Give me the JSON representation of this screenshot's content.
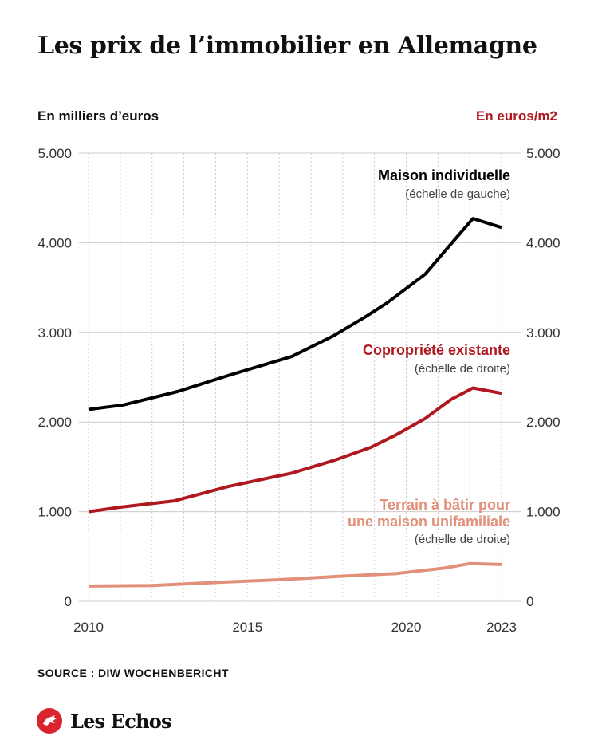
{
  "title": "Les prix de l’immobilier en Allemagne",
  "unit_left": "En milliers d’euros",
  "unit_right": "En euros/m2",
  "source": "SOURCE : DIW WOCHENBERICHT",
  "logo": "Les Echos",
  "colors": {
    "maison": "#000000",
    "copro": "#b0181f",
    "terrain": "#e2907a",
    "grid": "#cccccc",
    "brand": "#d9232e"
  },
  "chart_data": {
    "type": "line",
    "title": "Les prix de l’immobilier en Allemagne",
    "x_range": [
      2010,
      2023.3
    ],
    "x_ticks": [
      "2010",
      "2015",
      "2020",
      "2023"
    ],
    "x_tick_values": [
      2010,
      2015,
      2020,
      2023
    ],
    "y_left": {
      "label": "En milliers d’euros",
      "ylim": [
        0,
        5000
      ],
      "ticks": [
        "0",
        "1.000",
        "2.000",
        "3.000",
        "4.000",
        "5.000"
      ]
    },
    "y_right": {
      "label": "En euros/m2",
      "ylim": [
        0,
        5000
      ],
      "ticks": [
        "0",
        "1.000",
        "2.000",
        "3.000",
        "4.000",
        "5.000"
      ]
    },
    "grid": {
      "vertical": "dotted",
      "horizontal": "solid"
    },
    "series": [
      {
        "key": "maison",
        "name": "Maison individuelle",
        "note": "(échelle de gauche)",
        "axis": "left",
        "color": "#000000",
        "x": [
          2010,
          2011.1,
          2012.8,
          2014.5,
          2016.4,
          2017.7,
          2018.7,
          2019.4,
          2020.6,
          2021.2,
          2022.1,
          2023
        ],
        "values": [
          2140,
          2190,
          2340,
          2530,
          2730,
          2960,
          3170,
          3330,
          3650,
          3900,
          4270,
          4170
        ]
      },
      {
        "key": "copro",
        "name": "Copropriété existante",
        "note": "(échelle de droite)",
        "axis": "right",
        "color": "#b0181f",
        "x": [
          2010,
          2011,
          2012.7,
          2014.4,
          2016.4,
          2017.8,
          2018.9,
          2019.7,
          2020.6,
          2021.4,
          2022.1,
          2023
        ],
        "values": [
          1000,
          1050,
          1120,
          1280,
          1430,
          1580,
          1720,
          1860,
          2040,
          2250,
          2380,
          2320
        ]
      },
      {
        "key": "terrain",
        "name": "Terrain à bâtir pour une maison unifamiliale",
        "name_lines": [
          "Terrain à bâtir pour",
          "une maison unifamiliale"
        ],
        "note": "(échelle de droite)",
        "axis": "right",
        "color": "#e2907a",
        "x": [
          2010,
          2012,
          2014,
          2016,
          2018,
          2019.7,
          2021.2,
          2022,
          2023
        ],
        "values": [
          170,
          175,
          210,
          240,
          280,
          310,
          370,
          420,
          410
        ]
      }
    ]
  }
}
